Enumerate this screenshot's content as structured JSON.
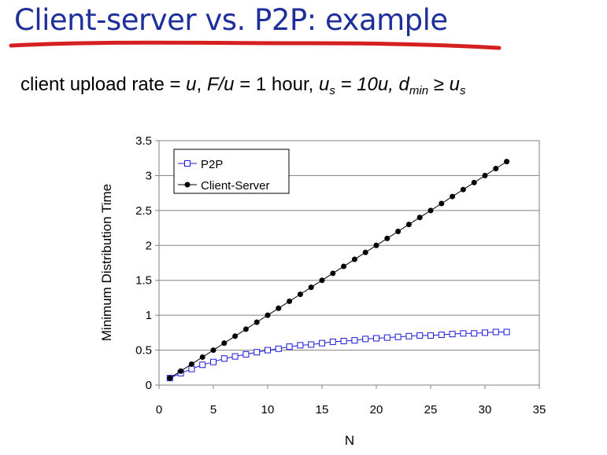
{
  "slide": {
    "title": "Client-server vs. P2P: example",
    "subtitle": {
      "p1": "client upload rate = ",
      "u1": "u",
      "p2": ",  ",
      "fu": "F/u",
      "p3": " = 1 hour,  ",
      "us_base": "u",
      "us_sub": "s",
      "us_eq": " = 10u,  ",
      "dmin_base": "d",
      "dmin_sub": "min",
      "ge": " ≥ ",
      "us2_base": "u",
      "us2_sub": "s"
    },
    "accent_color": "#1f2f9a",
    "underline_color": "#d42020"
  },
  "chart_data": {
    "type": "line",
    "xlabel": "N",
    "ylabel": "Minimum Distribution Time",
    "xlim": [
      0,
      35
    ],
    "ylim": [
      0,
      3.5
    ],
    "xticks": [
      "0",
      "5",
      "10",
      "15",
      "20",
      "25",
      "30",
      "35"
    ],
    "yticks": [
      "0",
      "0.5",
      "1",
      "1.5",
      "2",
      "2.5",
      "3",
      "3.5"
    ],
    "grid": "horizontal",
    "legend_position": "top-left",
    "x": [
      1,
      2,
      3,
      4,
      5,
      6,
      7,
      8,
      9,
      10,
      11,
      12,
      13,
      14,
      15,
      16,
      17,
      18,
      19,
      20,
      21,
      22,
      23,
      24,
      25,
      26,
      27,
      28,
      29,
      30,
      31,
      32
    ],
    "series": [
      {
        "name": "P2P",
        "color": "#1a1adc",
        "marker": "open-square",
        "values": [
          0.1,
          0.17,
          0.23,
          0.29,
          0.33,
          0.38,
          0.41,
          0.44,
          0.47,
          0.5,
          0.52,
          0.55,
          0.57,
          0.58,
          0.6,
          0.62,
          0.63,
          0.64,
          0.66,
          0.67,
          0.68,
          0.69,
          0.7,
          0.71,
          0.71,
          0.72,
          0.73,
          0.74,
          0.74,
          0.75,
          0.76,
          0.76
        ]
      },
      {
        "name": "Client-Server",
        "color": "#000000",
        "marker": "filled-circle",
        "values": [
          0.1,
          0.2,
          0.3,
          0.4,
          0.5,
          0.6,
          0.7,
          0.8,
          0.9,
          1.0,
          1.1,
          1.2,
          1.3,
          1.4,
          1.5,
          1.6,
          1.7,
          1.8,
          1.9,
          2.0,
          2.1,
          2.2,
          2.3,
          2.4,
          2.5,
          2.6,
          2.7,
          2.8,
          2.9,
          3.0,
          3.1,
          3.2
        ]
      }
    ]
  }
}
